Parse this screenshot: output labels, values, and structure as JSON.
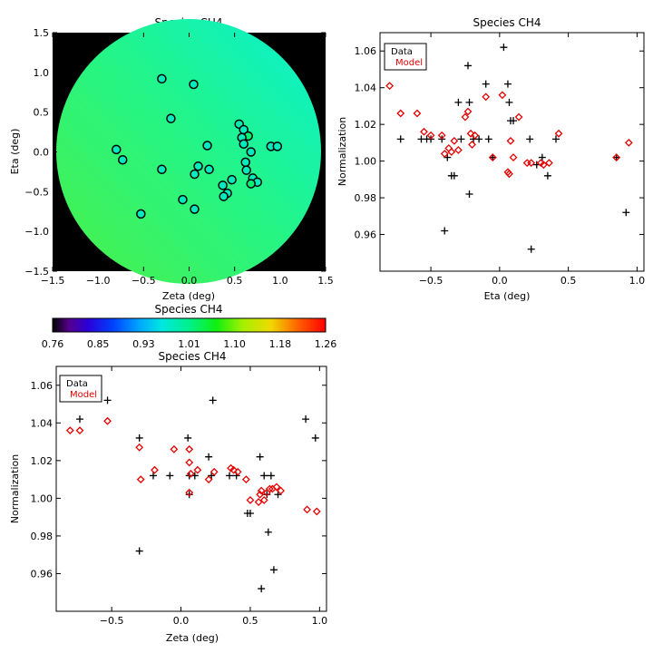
{
  "chart_data": [
    {
      "id": "map",
      "type": "heatmap",
      "title": "Species CH4",
      "xlabel": "Zeta (deg)",
      "ylabel": "Eta (deg)",
      "xlim": [
        -1.5,
        1.5
      ],
      "ylim": [
        -1.5,
        1.5
      ],
      "xticks": [
        -1.5,
        -1.0,
        -0.5,
        0.0,
        0.5,
        1.0,
        1.5
      ],
      "yticks": [
        -1.5,
        -1.0,
        -0.5,
        0.0,
        0.5,
        1.0,
        1.5
      ],
      "xtick_labels": [
        "−1.5",
        "−1.0",
        "−0.5",
        "0.0",
        "0.5",
        "1.0",
        "1.5"
      ],
      "ytick_labels": [
        "−1.5",
        "−1.0",
        "−0.5",
        "0.0",
        "0.5",
        "1.0",
        "1.5"
      ],
      "field_radius": 1.45,
      "background": "#000000",
      "points": [
        {
          "x": -0.3,
          "y": 0.92,
          "c": 0.98
        },
        {
          "x": 0.05,
          "y": 0.85,
          "c": 0.98
        },
        {
          "x": -0.2,
          "y": 0.42,
          "c": 0.98
        },
        {
          "x": 0.55,
          "y": 0.35,
          "c": 0.99
        },
        {
          "x": 0.6,
          "y": 0.28,
          "c": 0.98
        },
        {
          "x": 0.65,
          "y": 0.2,
          "c": 1.02
        },
        {
          "x": 0.58,
          "y": 0.18,
          "c": 0.98
        },
        {
          "x": 0.6,
          "y": 0.1,
          "c": 0.98
        },
        {
          "x": 0.2,
          "y": 0.08,
          "c": 0.98
        },
        {
          "x": 0.9,
          "y": 0.07,
          "c": 0.98
        },
        {
          "x": 0.97,
          "y": 0.07,
          "c": 0.98
        },
        {
          "x": -0.8,
          "y": 0.03,
          "c": 0.98
        },
        {
          "x": 0.68,
          "y": 0.0,
          "c": 0.98
        },
        {
          "x": -0.73,
          "y": -0.1,
          "c": 0.98
        },
        {
          "x": 0.62,
          "y": -0.13,
          "c": 0.98
        },
        {
          "x": 0.1,
          "y": -0.18,
          "c": 0.98
        },
        {
          "x": -0.3,
          "y": -0.22,
          "c": 0.98
        },
        {
          "x": 0.22,
          "y": -0.22,
          "c": 0.98
        },
        {
          "x": 0.63,
          "y": -0.23,
          "c": 0.98
        },
        {
          "x": 0.06,
          "y": -0.28,
          "c": 0.98
        },
        {
          "x": 0.7,
          "y": -0.33,
          "c": 0.98
        },
        {
          "x": 0.47,
          "y": -0.35,
          "c": 0.98
        },
        {
          "x": 0.75,
          "y": -0.38,
          "c": 0.98
        },
        {
          "x": 0.68,
          "y": -0.4,
          "c": 1.02
        },
        {
          "x": 0.37,
          "y": -0.42,
          "c": 0.98
        },
        {
          "x": 0.42,
          "y": -0.52,
          "c": 0.98
        },
        {
          "x": 0.38,
          "y": -0.56,
          "c": 0.98
        },
        {
          "x": -0.07,
          "y": -0.6,
          "c": 0.98
        },
        {
          "x": 0.06,
          "y": -0.72,
          "c": 0.98
        },
        {
          "x": -0.53,
          "y": -0.78,
          "c": 0.98
        }
      ]
    },
    {
      "id": "colorbar",
      "type": "colorbar",
      "title": "Species CH4",
      "range": [
        0.76,
        1.26
      ],
      "tick_labels": [
        "0.76",
        "0.85",
        "0.93",
        "1.01",
        "1.10",
        "1.18",
        "1.26"
      ]
    },
    {
      "id": "eta",
      "type": "scatter",
      "title": "Species CH4",
      "xlabel": "Eta (deg)",
      "ylabel": "Normalization",
      "xlim": [
        -0.87,
        1.05
      ],
      "ylim": [
        0.94,
        1.07
      ],
      "xticks": [
        -0.5,
        0.0,
        0.5,
        1.0
      ],
      "xtick_labels": [
        "−0.5",
        "0.0",
        "0.5",
        "1.0"
      ],
      "yticks": [
        0.96,
        0.98,
        1.0,
        1.02,
        1.04,
        1.06
      ],
      "ytick_labels": [
        "0.96",
        "0.98",
        "1.00",
        "1.02",
        "1.04",
        "1.06"
      ],
      "legend": {
        "position": "top-left",
        "entries": [
          "Data",
          "Model"
        ]
      },
      "series": [
        {
          "name": "Data",
          "marker": "plus",
          "color": "#000000",
          "x": [
            -0.78,
            -0.72,
            -0.57,
            -0.53,
            -0.5,
            -0.42,
            -0.4,
            -0.38,
            -0.35,
            -0.33,
            -0.3,
            -0.28,
            -0.23,
            -0.22,
            -0.22,
            -0.19,
            -0.15,
            -0.1,
            -0.08,
            -0.05,
            0.03,
            0.06,
            0.07,
            0.08,
            0.1,
            0.22,
            0.23,
            0.27,
            0.31,
            0.35,
            0.41,
            0.85,
            0.92
          ],
          "y": [
            1.052,
            1.012,
            1.012,
            1.012,
            1.012,
            1.012,
            0.962,
            1.002,
            0.992,
            0.992,
            1.032,
            1.012,
            1.052,
            0.982,
            1.032,
            1.012,
            1.012,
            1.042,
            1.012,
            1.002,
            1.062,
            1.042,
            1.032,
            1.022,
            1.022,
            1.012,
            0.952,
            0.998,
            1.002,
            0.992,
            1.012,
            1.002,
            0.972
          ]
        },
        {
          "name": "Model",
          "marker": "diamond",
          "color": "#e60000",
          "x": [
            -0.8,
            -0.72,
            -0.6,
            -0.55,
            -0.5,
            -0.42,
            -0.4,
            -0.37,
            -0.35,
            -0.33,
            -0.3,
            -0.25,
            -0.23,
            -0.21,
            -0.2,
            -0.18,
            -0.1,
            -0.05,
            0.02,
            0.06,
            0.07,
            0.08,
            0.1,
            0.14,
            0.2,
            0.23,
            0.3,
            0.32,
            0.36,
            0.43,
            0.85,
            0.94
          ],
          "y": [
            1.041,
            1.026,
            1.026,
            1.016,
            1.014,
            1.014,
            1.004,
            1.007,
            1.005,
            1.011,
            1.006,
            1.024,
            1.027,
            1.015,
            1.009,
            1.014,
            1.035,
            1.002,
            1.036,
            0.994,
            0.993,
            1.011,
            1.002,
            1.024,
            0.999,
            0.999,
            0.999,
            0.998,
            0.999,
            1.015,
            1.002,
            1.01
          ]
        }
      ]
    },
    {
      "id": "zeta",
      "type": "scatter",
      "title": "Species CH4",
      "xlabel": "Zeta (deg)",
      "ylabel": "Normalization",
      "xlim": [
        -0.9,
        1.05
      ],
      "ylim": [
        0.94,
        1.07
      ],
      "xticks": [
        -0.5,
        0.0,
        0.5,
        1.0
      ],
      "xtick_labels": [
        "−0.5",
        "0.0",
        "0.5",
        "1.0"
      ],
      "yticks": [
        0.96,
        0.98,
        1.0,
        1.02,
        1.04,
        1.06
      ],
      "ytick_labels": [
        "0.96",
        "0.98",
        "1.00",
        "1.02",
        "1.04",
        "1.06"
      ],
      "legend": {
        "position": "top-left",
        "entries": [
          "Data",
          "Model"
        ]
      },
      "series": [
        {
          "name": "Data",
          "marker": "plus",
          "color": "#000000",
          "x": [
            -0.73,
            -0.53,
            -0.3,
            -0.3,
            -0.2,
            -0.08,
            0.05,
            0.06,
            0.06,
            0.1,
            0.2,
            0.22,
            0.23,
            0.35,
            0.4,
            0.48,
            0.5,
            0.57,
            0.58,
            0.6,
            0.62,
            0.63,
            0.65,
            0.67,
            0.7,
            0.9,
            0.97
          ],
          "y": [
            1.042,
            1.052,
            1.032,
            0.972,
            1.012,
            1.012,
            1.032,
            1.012,
            1.002,
            1.012,
            1.022,
            1.012,
            1.052,
            1.012,
            1.012,
            0.992,
            0.992,
            1.022,
            0.952,
            1.012,
            1.002,
            0.982,
            1.012,
            0.962,
            1.002,
            1.042,
            1.032
          ]
        },
        {
          "name": "Model",
          "marker": "diamond",
          "color": "#e60000",
          "x": [
            -0.8,
            -0.73,
            -0.53,
            -0.3,
            -0.29,
            -0.19,
            -0.05,
            0.06,
            0.06,
            0.06,
            0.07,
            0.12,
            0.2,
            0.24,
            0.36,
            0.38,
            0.41,
            0.47,
            0.5,
            0.56,
            0.57,
            0.58,
            0.6,
            0.62,
            0.64,
            0.66,
            0.69,
            0.72,
            0.91,
            0.98
          ],
          "y": [
            1.036,
            1.036,
            1.041,
            1.027,
            1.01,
            1.015,
            1.026,
            1.026,
            1.019,
            1.003,
            1.013,
            1.015,
            1.01,
            1.014,
            1.016,
            1.015,
            1.014,
            1.01,
            0.999,
            0.998,
            1.002,
            1.004,
            0.999,
            1.003,
            1.005,
            1.005,
            1.006,
            1.004,
            0.994,
            0.993
          ]
        }
      ]
    }
  ]
}
